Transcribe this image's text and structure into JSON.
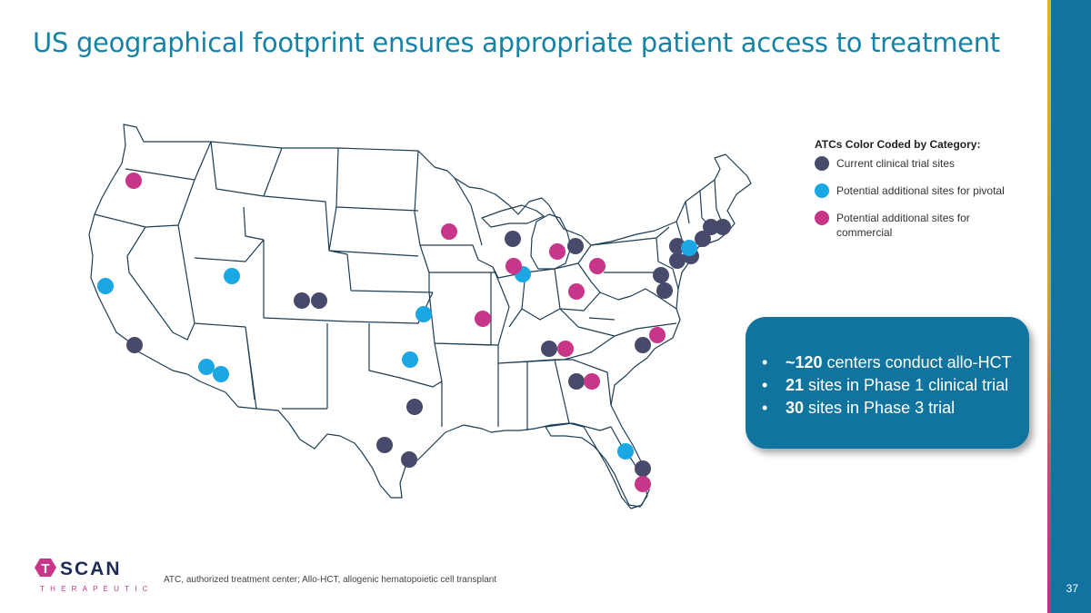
{
  "title": "US geographical footprint ensures appropriate patient access to treatment",
  "legend": {
    "title": "ATCs Color Coded by Category:",
    "items": [
      {
        "label": "Current clinical trial sites",
        "color": "#474a6b"
      },
      {
        "label": "Potential additional sites for pivotal",
        "color": "#1aa7e3"
      },
      {
        "label": "Potential additional sites for commercial",
        "color": "#c8368a"
      }
    ]
  },
  "callout": {
    "items": [
      {
        "bold": "~120",
        "rest": " centers conduct allo-HCT"
      },
      {
        "bold": "21",
        "rest": " sites in Phase 1 clinical trial"
      },
      {
        "bold": "30",
        "rest": " sites in Phase 3 trial"
      }
    ]
  },
  "footnote": "ATC, authorized treatment center; Allo-HCT, allogenic hematopoietic cell transplant",
  "page_number": "37",
  "logo": {
    "letter": "T",
    "word": "SCAN",
    "tagline": "THERAPEUTICS"
  },
  "colors": {
    "current": "#474a6b",
    "pivotal": "#1aa7e3",
    "commercial": "#c8368a",
    "accent": "#1583a6"
  }
}
